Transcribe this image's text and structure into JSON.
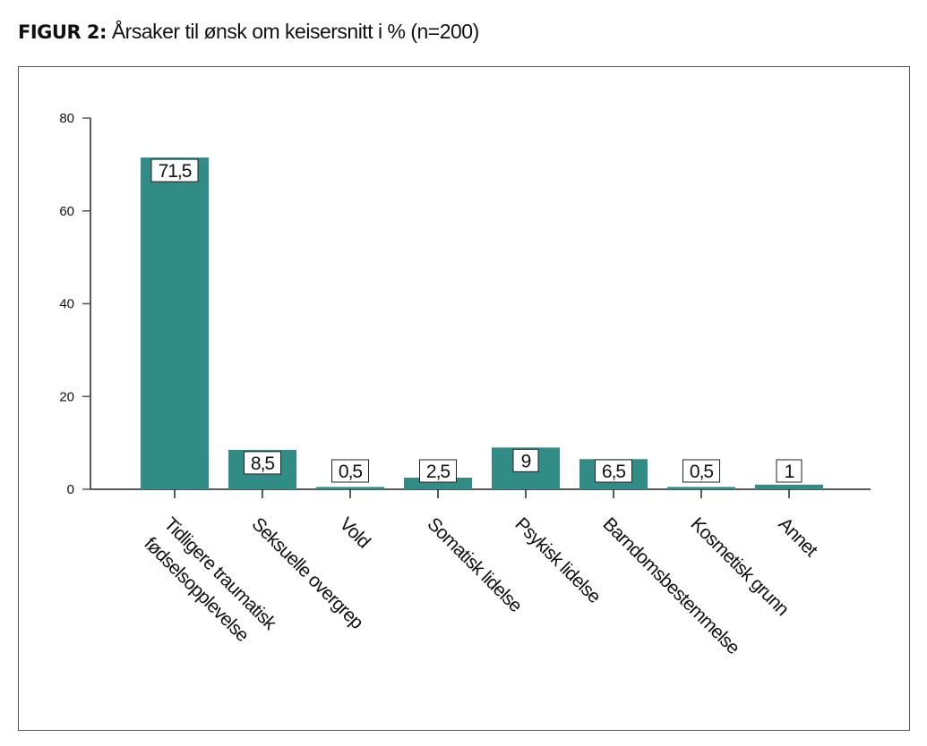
{
  "chart_data": {
    "type": "bar",
    "title_prefix": "FIGUR 2:",
    "title": "Årsaker til ønsk om keisersnitt i % (n=200)",
    "categories": [
      [
        "Tidligere traumatisk",
        "fødselsopplevelse"
      ],
      [
        "Seksuelle overgrep"
      ],
      [
        "Vold"
      ],
      [
        "Somatisk lidelse"
      ],
      [
        "Psykisk lidelse"
      ],
      [
        "Barndomsbestemmelse"
      ],
      [
        "Kosmetisk grunn"
      ],
      [
        "Annet"
      ]
    ],
    "values": [
      71.5,
      8.5,
      0.5,
      2.5,
      9,
      6.5,
      0.5,
      1
    ],
    "data_labels": [
      "71,5",
      "8,5",
      "0,5",
      "2,5",
      "9",
      "6,5",
      "0,5",
      "1"
    ],
    "ylim": [
      0,
      80
    ],
    "yticks": [
      0,
      20,
      40,
      60,
      80
    ],
    "xlabel": "",
    "ylabel": "",
    "grid": false,
    "legend": "none",
    "bar_color": "#318c86"
  }
}
